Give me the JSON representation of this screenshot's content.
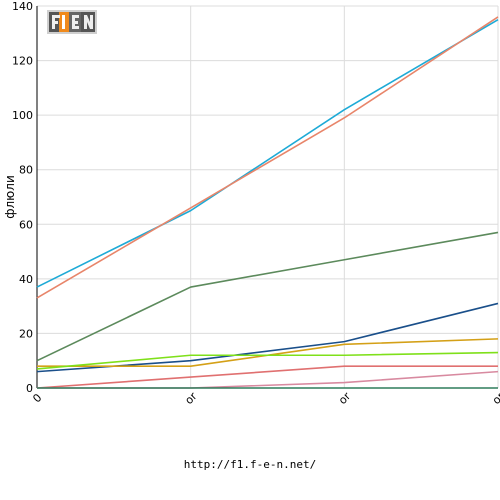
{
  "logo": {
    "text": "F1EN",
    "accent": "#f08a1c"
  },
  "footer": {
    "url": "http://f1.f-e-n.net/"
  },
  "chart_data": {
    "type": "line",
    "ylabel": "флюли",
    "xlabel": "",
    "ylim": [
      0,
      140
    ],
    "yticks": [
      0,
      20,
      40,
      60,
      80,
      100,
      120,
      140
    ],
    "x": [
      0,
      1,
      2,
      3
    ],
    "xtick_labels": [
      "0",
      "or",
      "or",
      "or"
    ],
    "grid": true,
    "series": [
      {
        "color": "#1eaad6",
        "values": [
          37,
          65,
          102,
          135
        ]
      },
      {
        "color": "#e8856a",
        "values": [
          33,
          66,
          99,
          136
        ]
      },
      {
        "color": "#5c8a5c",
        "values": [
          10,
          37,
          47,
          57
        ]
      },
      {
        "color": "#1a4f8a",
        "values": [
          6,
          10,
          17,
          31
        ]
      },
      {
        "color": "#d4a017",
        "values": [
          8,
          8,
          16,
          18
        ]
      },
      {
        "color": "#7fe01a",
        "values": [
          7,
          12,
          12,
          13
        ]
      },
      {
        "color": "#e07070",
        "values": [
          0,
          4,
          8,
          8
        ]
      },
      {
        "color": "#d88aa0",
        "values": [
          0,
          0,
          2,
          6
        ]
      },
      {
        "color": "#2e7d5b",
        "values": [
          0,
          0,
          0,
          0
        ]
      }
    ]
  }
}
